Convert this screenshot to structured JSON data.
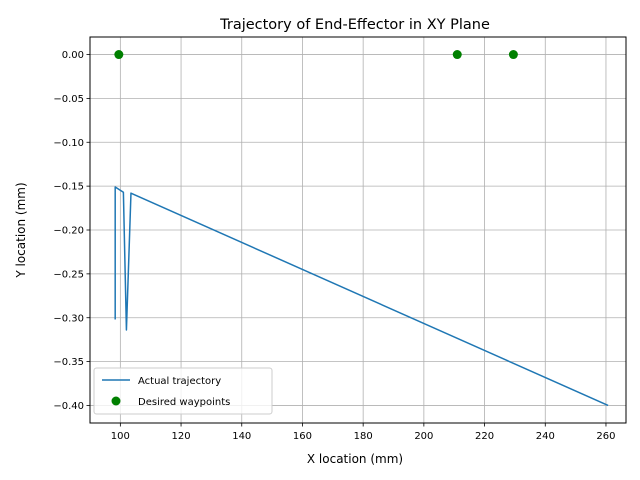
{
  "chart_data": {
    "type": "line",
    "title": "Trajectory of End-Effector in XY Plane",
    "xlabel": "X location (mm)",
    "ylabel": "Y location (mm)",
    "xlim": [
      90,
      266.6
    ],
    "ylim": [
      -0.42,
      0.02
    ],
    "xticks": [
      100,
      120,
      140,
      160,
      180,
      200,
      220,
      240,
      260
    ],
    "xtick_labels": [
      "100",
      "120",
      "140",
      "160",
      "180",
      "200",
      "220",
      "240",
      "260"
    ],
    "yticks": [
      0.0,
      -0.05,
      -0.1,
      -0.15,
      -0.2,
      -0.25,
      -0.3,
      -0.35,
      -0.4
    ],
    "ytick_labels": [
      "0.00",
      "−0.05",
      "−0.10",
      "−0.15",
      "−0.20",
      "−0.25",
      "−0.30",
      "−0.35",
      "−0.40"
    ],
    "grid": true,
    "legend_position": "lower-left",
    "series": [
      {
        "name": "Actual trajectory",
        "kind": "line",
        "color": "#1f77b4",
        "points": [
          [
            98.3,
            -0.302
          ],
          [
            98.3,
            -0.151
          ],
          [
            101.0,
            -0.157
          ],
          [
            102.0,
            -0.314
          ],
          [
            103.5,
            -0.158
          ],
          [
            260.7,
            -0.4
          ]
        ]
      },
      {
        "name": "Desired waypoints",
        "kind": "scatter",
        "color": "#008000",
        "points": [
          [
            99.5,
            0.0
          ],
          [
            211.0,
            0.0
          ],
          [
            229.5,
            0.0
          ]
        ]
      }
    ]
  }
}
